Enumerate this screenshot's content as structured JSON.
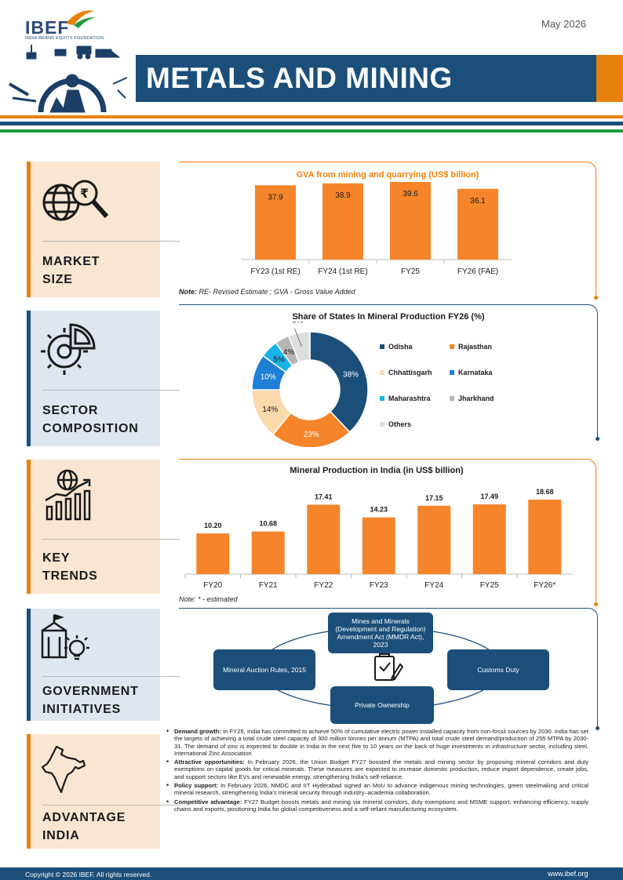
{
  "header": {
    "logo": "IBEF",
    "logo_sub": "INDIA BRAND EQUITY FOUNDATION",
    "date": "May 2026",
    "title": "METALS AND MINING"
  },
  "colors": {
    "navy": "#1b4f7a",
    "orange": "#e8820c",
    "green": "#1e9b3c",
    "card_peach": "#f8e6d2",
    "card_blue": "#dfe6ef"
  },
  "sections": {
    "market_size": {
      "label1": "MARKET",
      "label2": "SIZE",
      "icon": "globe-magnifier-icon"
    },
    "sector_composition": {
      "label1": "SECTOR",
      "label2": "COMPOSITION",
      "icon": "gear-pie-icon"
    },
    "key_trends": {
      "label1": "KEY",
      "label2": "TRENDS",
      "icon": "globe-growth-chart-icon"
    },
    "government_initiatives": {
      "label1": "GOVERNMENT",
      "label2": "INITIATIVES",
      "icon": "building-lightbulb-icon"
    },
    "advantage_india": {
      "label1": "ADVANTAGE",
      "label2": "INDIA",
      "icon": "india-map-icon"
    }
  },
  "gva_chart": {
    "note_prefix": "Note:",
    "note": "RE- Revised Estimate ; GVA - Gross Value Added",
    "chart_data": {
      "type": "bar",
      "title": "GVA from mining and quarrying (US$ billion)",
      "categories": [
        "FY23 (1st RE)",
        "FY24 (1st RE)",
        "FY25",
        "FY26 (FAE)"
      ],
      "values": [
        37.9,
        38.9,
        39.6,
        36.1
      ],
      "value_labels": [
        "37.9",
        "38.9",
        "39.6",
        "36.1"
      ],
      "color": "#f5842a"
    }
  },
  "share_chart": {
    "chart_data": {
      "type": "pie",
      "title": "Share of States In Mineral Production FY26 (%)",
      "labels": [
        "Odisha",
        "Rajasthan",
        "Chhattisgarh",
        "Karnataka",
        "Maharashtra",
        "Jharkhand",
        "Others"
      ],
      "values": [
        38,
        23,
        14,
        10,
        5,
        4,
        6
      ],
      "value_labels": [
        "38%",
        "23%",
        "14%",
        "10%",
        "5%",
        "4%",
        "6%"
      ],
      "colors": [
        "#1b4f7a",
        "#f5842a",
        "#fbd9ab",
        "#1f7fd4",
        "#19b3ea",
        "#b5b5b5",
        "#dedede"
      ]
    }
  },
  "production_chart": {
    "note": "Note: * - estimated",
    "chart_data": {
      "type": "bar",
      "title": "Mineral Production in India (in US$ billion)",
      "categories": [
        "FY20",
        "FY21",
        "FY22",
        "FY23",
        "FY24",
        "FY25",
        "FY26*"
      ],
      "values": [
        10.2,
        10.68,
        17.41,
        14.23,
        17.15,
        17.49,
        18.68
      ],
      "value_labels": [
        "10.20",
        "10.68",
        "17.41",
        "14.23",
        "17.15",
        "17.49",
        "18.68"
      ],
      "color": "#f5842a"
    }
  },
  "government": {
    "center_icon": "document-checkmark-icon",
    "top": "Mines and Minerals (Development and Regulation) Amendment Act (MMDR Act), 2023",
    "left": "Mineral Auction Rules, 2015",
    "right": "Customs Duty",
    "bottom": "Private Ownership"
  },
  "advantage": [
    {
      "head": "Demand growth:",
      "text": " In FY25, India has committed to achieve 50% of cumulative electric power installed capacity from non-fossil sources by 2030. India has set the targets of achieving a total crude steel capacity of 300 million tonnes per annum (MTPA) and total crude steel demand/production of 255 MTPA by 2030-31. The demand of zinc is expected to double in India in the next five to 10 years on the back of huge investments in infrastructure sector, including steel, International Zinc Association"
    },
    {
      "head": "Attractive opportunities:",
      "text": " In February 2026, the Union Budget FY27 boosted the metals and mining sector by proposing mineral corridors and duty exemptions on capital goods for critical minerals. These measures are expected to increase domestic production, reduce import dependence, create jobs, and support sectors like EVs and renewable energy, strengthening India's self-reliance."
    },
    {
      "head": "Policy support:",
      "text": " In February 2026, NMDC and IIT Hyderabad signed an MoU to advance indigenous mining technologies, green steelmaking and critical mineral research, strengthening India's mineral security through industry–academia collaboration."
    },
    {
      "head": "Competitive advantage:",
      "text": " FY27 Budget boosts metals and mining via mineral corridors, duty exemptions and MSME support, enhancing efficiency, supply chains and exports, positioning India for global competitiveness and a self-reliant manufacturing ecosystem."
    }
  ],
  "footer": {
    "copyright": "Copyright © 2026 IBEF. All rights reserved.",
    "website": "www.ibef.org"
  }
}
